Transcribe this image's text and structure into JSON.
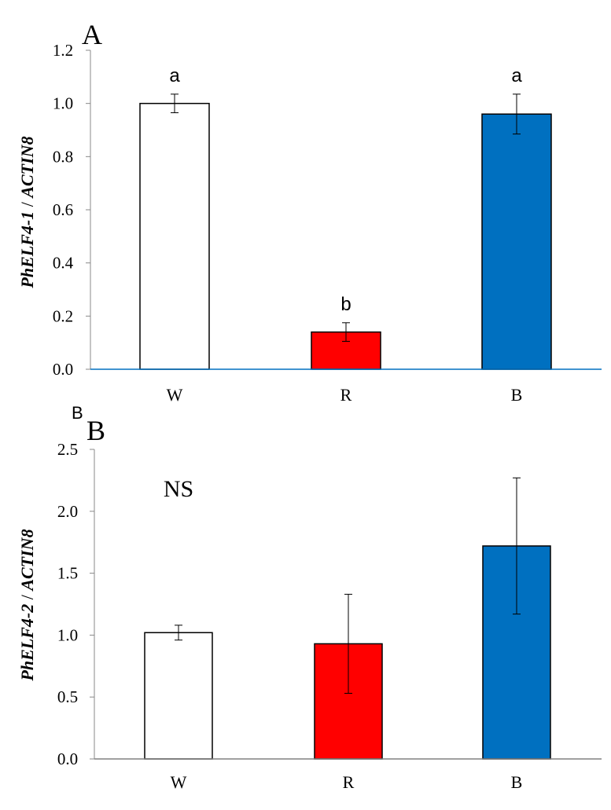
{
  "figure": {
    "stray_label": "B"
  },
  "chart_data": [
    {
      "panel_label": "A",
      "type": "bar",
      "title": "",
      "xlabel": "",
      "ylabel_gene": "PhELF4-1",
      "ylabel_ref": "ACTIN8",
      "categories": [
        "W",
        "R",
        "B"
      ],
      "values": [
        1.0,
        0.14,
        0.96
      ],
      "errors": [
        0.035,
        0.035,
        0.075
      ],
      "significance_letters": [
        "a",
        "b",
        "a"
      ],
      "annotation": "",
      "colors": [
        "#ffffff",
        "#ff0000",
        "#0070c0"
      ],
      "ylim": [
        0,
        1.2
      ],
      "yticks": [
        "0.0",
        "0.2",
        "0.4",
        "0.6",
        "0.8",
        "1.0",
        "1.2"
      ],
      "ytick_values": [
        0,
        0.2,
        0.4,
        0.6,
        0.8,
        1.0,
        1.2
      ],
      "axis_color": "#0070c0",
      "grid": false
    },
    {
      "panel_label": "B",
      "type": "bar",
      "title": "",
      "xlabel": "",
      "ylabel_gene": "PhELF4-2",
      "ylabel_ref": "ACTIN8",
      "categories": [
        "W",
        "R",
        "B"
      ],
      "values": [
        1.02,
        0.93,
        1.72
      ],
      "errors": [
        0.06,
        0.4,
        0.55
      ],
      "significance_letters": [
        "",
        "",
        ""
      ],
      "annotation": "NS",
      "colors": [
        "#ffffff",
        "#ff0000",
        "#0070c0"
      ],
      "ylim": [
        0,
        2.5
      ],
      "yticks": [
        "0.0",
        "0.5",
        "1.0",
        "1.5",
        "2.0",
        "2.5"
      ],
      "ytick_values": [
        0,
        0.5,
        1.0,
        1.5,
        2.0,
        2.5
      ],
      "axis_color": "#808080",
      "grid": false
    }
  ]
}
